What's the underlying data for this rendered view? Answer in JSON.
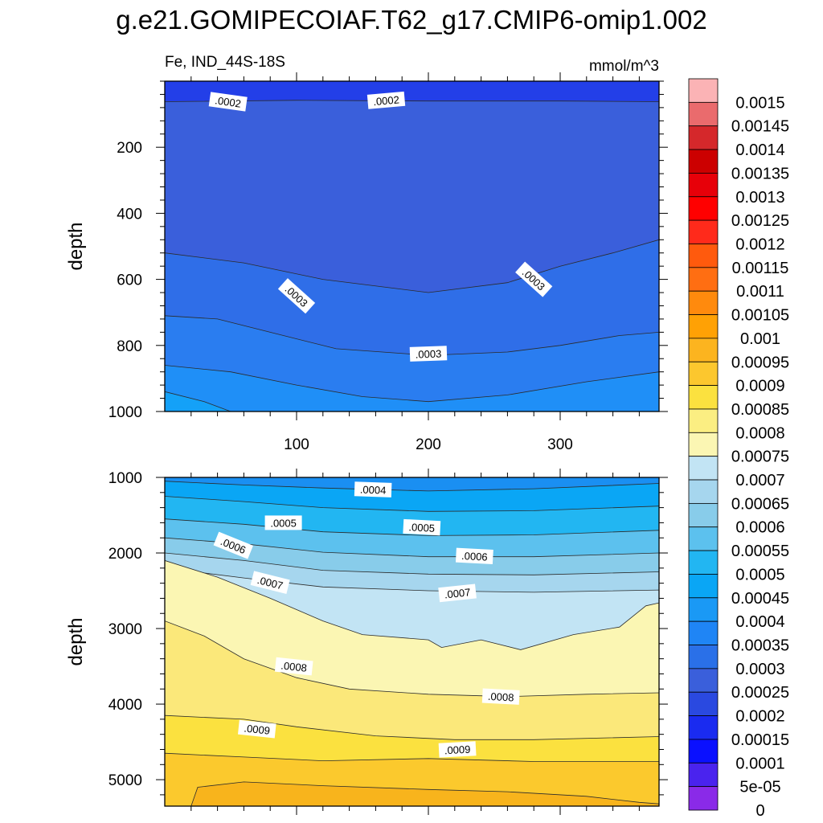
{
  "title": "g.e21.GOMIPECOIAF.T62_g17.CMIP6-omip1.002",
  "left_string": "Fe, IND_44S-18S",
  "right_string": "mmol/m^3",
  "chart_data": [
    {
      "type": "heatmap",
      "name": "upper",
      "ylabel": "depth",
      "xlim": [
        0,
        375
      ],
      "ylim": [
        0,
        1000
      ],
      "y_reversed": true,
      "x_ticks": [
        100,
        200,
        300
      ],
      "x_tick_labels": [
        "100",
        "200",
        "300"
      ],
      "y_ticks": [
        200,
        400,
        600,
        800,
        1000
      ],
      "y_tick_labels": [
        "200",
        "400",
        "600",
        "800",
        "1000"
      ],
      "bands": [
        {
          "value": 0.00015,
          "color": "#233fe8",
          "upper": null
        },
        {
          "value": 0.0002,
          "color": "#3a5fdb",
          "upper": [
            [
              0,
              62
            ],
            [
              100,
              58
            ],
            [
              200,
              60
            ],
            [
              300,
              60
            ],
            [
              375,
              62
            ]
          ]
        },
        {
          "value": 0.00025,
          "color": "#2f6ee8",
          "upper": [
            [
              0,
              520
            ],
            [
              60,
              550
            ],
            [
              120,
              600
            ],
            [
              200,
              640
            ],
            [
              260,
              610
            ],
            [
              300,
              560
            ],
            [
              340,
              520
            ],
            [
              375,
              480
            ]
          ]
        },
        {
          "value": 0.0003,
          "color": "#2a7df0",
          "upper": [
            [
              0,
              710
            ],
            [
              40,
              720
            ],
            [
              80,
              760
            ],
            [
              130,
              810
            ],
            [
              200,
              830
            ],
            [
              260,
              820
            ],
            [
              300,
              800
            ],
            [
              345,
              770
            ],
            [
              375,
              760
            ]
          ]
        },
        {
          "value": 0.00035,
          "color": "#1f8ff7",
          "upper": [
            [
              0,
              860
            ],
            [
              50,
              880
            ],
            [
              100,
              920
            ],
            [
              150,
              955
            ],
            [
              200,
              970
            ],
            [
              260,
              950
            ],
            [
              320,
              910
            ],
            [
              375,
              880
            ]
          ]
        },
        {
          "value": 0.0004,
          "color": "#14a1f8",
          "upper": [
            [
              0,
              940
            ],
            [
              30,
              970
            ],
            [
              50,
              1000
            ]
          ]
        }
      ],
      "contour_labels": [
        {
          "text": ".0002",
          "x": 48,
          "y": 62,
          "rotate": 8
        },
        {
          "text": ".0002",
          "x": 168,
          "y": 58,
          "rotate": -5
        },
        {
          "text": ".0003",
          "x": 100,
          "y": 650,
          "rotate": 42
        },
        {
          "text": ".0003",
          "x": 280,
          "y": 600,
          "rotate": 42
        },
        {
          "text": ".0003",
          "x": 200,
          "y": 825,
          "rotate": -2
        }
      ]
    },
    {
      "type": "heatmap",
      "name": "lower",
      "ylabel": "depth",
      "xlim": [
        0,
        375
      ],
      "ylim": [
        1000,
        5350
      ],
      "y_reversed": true,
      "x_ticks": [
        100,
        200,
        300
      ],
      "x_tick_labels": [],
      "y_ticks": [
        1000,
        2000,
        3000,
        4000,
        5000
      ],
      "y_tick_labels": [
        "1000",
        "2000",
        "3000",
        "4000",
        "5000"
      ],
      "bands": [
        {
          "value": 0.0004,
          "color": "#1a8ff2",
          "upper": null
        },
        {
          "value": 0.00045,
          "color": "#0aa6f5",
          "upper": [
            [
              0,
              1050
            ],
            [
              60,
              1100
            ],
            [
              120,
              1140
            ],
            [
              200,
              1180
            ],
            [
              280,
              1150
            ],
            [
              375,
              1080
            ]
          ]
        },
        {
          "value": 0.0005,
          "color": "#22b6f2",
          "upper": [
            [
              0,
              1250
            ],
            [
              60,
              1320
            ],
            [
              120,
              1400
            ],
            [
              200,
              1450
            ],
            [
              280,
              1440
            ],
            [
              375,
              1380
            ]
          ]
        },
        {
          "value": 0.00055,
          "color": "#5cc1ee",
          "upper": [
            [
              0,
              1550
            ],
            [
              60,
              1620
            ],
            [
              120,
              1720
            ],
            [
              200,
              1770
            ],
            [
              280,
              1760
            ],
            [
              375,
              1700
            ]
          ]
        },
        {
          "value": 0.0006,
          "color": "#88ccea",
          "upper": [
            [
              0,
              1800
            ],
            [
              60,
              1880
            ],
            [
              120,
              1990
            ],
            [
              200,
              2050
            ],
            [
              280,
              2050
            ],
            [
              375,
              2000
            ]
          ]
        },
        {
          "value": 0.00065,
          "color": "#a6d6ee",
          "upper": [
            [
              0,
              2000
            ],
            [
              60,
              2100
            ],
            [
              120,
              2230
            ],
            [
              200,
              2280
            ],
            [
              280,
              2290
            ],
            [
              375,
              2250
            ]
          ]
        },
        {
          "value": 0.0007,
          "color": "#c2e4f4",
          "upper": [
            [
              0,
              2200
            ],
            [
              60,
              2330
            ],
            [
              120,
              2450
            ],
            [
              200,
              2500
            ],
            [
              280,
              2520
            ],
            [
              375,
              2490
            ]
          ]
        },
        {
          "value": 0.00075,
          "color": "#fbf6b3",
          "upper": [
            [
              0,
              2100
            ],
            [
              40,
              2320
            ],
            [
              80,
              2600
            ],
            [
              120,
              2900
            ],
            [
              150,
              3080
            ],
            [
              200,
              3150
            ],
            [
              210,
              3250
            ],
            [
              240,
              3150
            ],
            [
              270,
              3280
            ],
            [
              310,
              3080
            ],
            [
              345,
              2980
            ],
            [
              365,
              2700
            ],
            [
              375,
              2660
            ]
          ]
        },
        {
          "value": 0.0008,
          "color": "#fbe87a",
          "upper": [
            [
              0,
              2900
            ],
            [
              30,
              3100
            ],
            [
              60,
              3400
            ],
            [
              100,
              3650
            ],
            [
              140,
              3800
            ],
            [
              200,
              3870
            ],
            [
              260,
              3900
            ],
            [
              320,
              3870
            ],
            [
              375,
              3850
            ]
          ]
        },
        {
          "value": 0.00085,
          "color": "#fbe13f",
          "upper": [
            [
              0,
              4150
            ],
            [
              60,
              4200
            ],
            [
              100,
              4300
            ],
            [
              160,
              4420
            ],
            [
              220,
              4470
            ],
            [
              280,
              4470
            ],
            [
              375,
              4430
            ]
          ]
        },
        {
          "value": 0.0009,
          "color": "#fbc92d",
          "upper": [
            [
              0,
              4650
            ],
            [
              60,
              4700
            ],
            [
              120,
              4750
            ],
            [
              200,
              4720
            ],
            [
              280,
              4760
            ],
            [
              375,
              4760
            ]
          ]
        },
        {
          "value": 0.00095,
          "color": "#f8b41c",
          "upper": [
            [
              20,
              5350
            ],
            [
              25,
              5100
            ],
            [
              60,
              5030
            ],
            [
              120,
              5080
            ],
            [
              200,
              5130
            ],
            [
              260,
              5160
            ],
            [
              320,
              5220
            ],
            [
              360,
              5300
            ],
            [
              375,
              5320
            ]
          ]
        }
      ],
      "contour_labels": [
        {
          "text": ".0004",
          "x": 158,
          "y": 1160,
          "rotate": 2
        },
        {
          "text": ".0005",
          "x": 90,
          "y": 1600,
          "rotate": 0
        },
        {
          "text": ".0005",
          "x": 195,
          "y": 1660,
          "rotate": 3
        },
        {
          "text": ".0006",
          "x": 52,
          "y": 1900,
          "rotate": 22
        },
        {
          "text": ".0006",
          "x": 235,
          "y": 2040,
          "rotate": 3
        },
        {
          "text": ".0007",
          "x": 80,
          "y": 2390,
          "rotate": 14
        },
        {
          "text": ".0007",
          "x": 222,
          "y": 2530,
          "rotate": -6
        },
        {
          "text": ".0008",
          "x": 98,
          "y": 3500,
          "rotate": 6
        },
        {
          "text": ".0008",
          "x": 255,
          "y": 3900,
          "rotate": 3
        },
        {
          "text": ".0009",
          "x": 70,
          "y": 4330,
          "rotate": 6
        },
        {
          "text": ".0009",
          "x": 222,
          "y": 4600,
          "rotate": -3
        }
      ]
    }
  ],
  "colorbar": {
    "labels": [
      "0.0015",
      "0.00145",
      "0.0014",
      "0.00135",
      "0.0013",
      "0.00125",
      "0.0012",
      "0.00115",
      "0.0011",
      "0.00105",
      "0.001",
      "0.00095",
      "0.0009",
      "0.00085",
      "0.0008",
      "0.00075",
      "0.0007",
      "0.00065",
      "0.0006",
      "0.00055",
      "0.0005",
      "0.00045",
      "0.0004",
      "0.00035",
      "0.0003",
      "0.00025",
      "0.0002",
      "0.00015",
      "0.0001",
      "5e-05",
      "0"
    ],
    "colors": [
      "#fbb3b5",
      "#ea6b6d",
      "#d5282b",
      "#cc0000",
      "#e70009",
      "#ff0000",
      "#ff2a1b",
      "#ff5a0d",
      "#ff6e12",
      "#ff8a0d",
      "#ffa105",
      "#fcb41f",
      "#fcc72e",
      "#fbe13f",
      "#fbee82",
      "#fbf6b3",
      "#c2e4f4",
      "#a6d6ee",
      "#88ccea",
      "#5cc1ee",
      "#22b6f2",
      "#0aa6f5",
      "#1a99f5",
      "#1f85f5",
      "#2a70e8",
      "#3a5fdb",
      "#2a49e0",
      "#1a2bf0",
      "#0a10ff",
      "#4a23ee",
      "#8a2ae8"
    ]
  }
}
